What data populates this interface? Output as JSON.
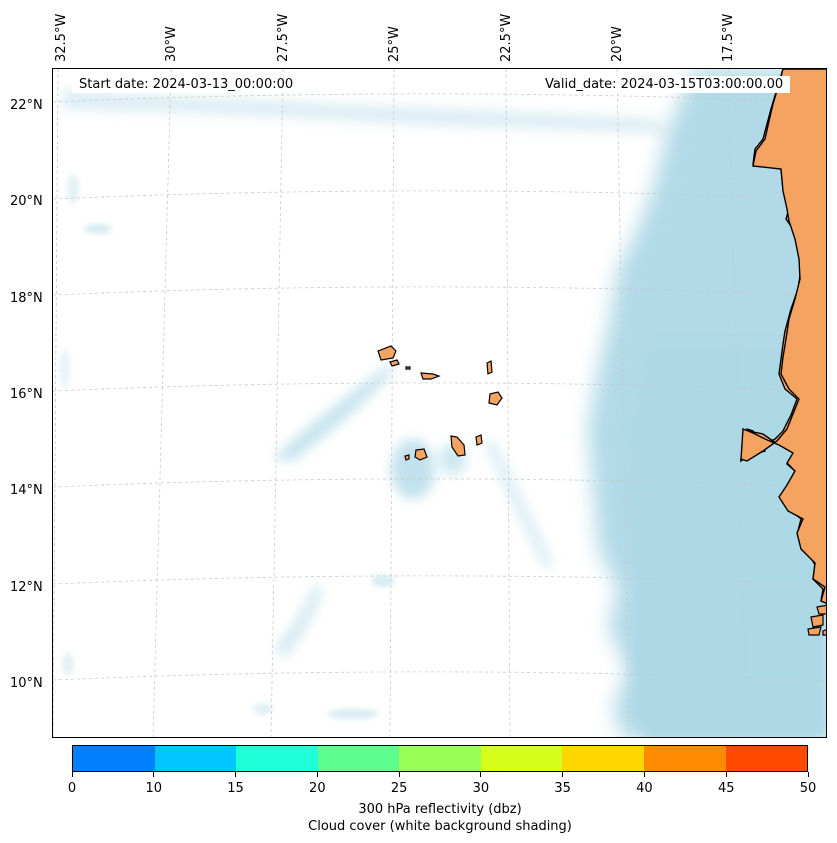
{
  "lon_labels": [
    "32.5°W",
    "30°W",
    "27.5°W",
    "25°W",
    "22.5°W",
    "20°W",
    "17.5°W"
  ],
  "lat_labels": [
    "22°N",
    "20°N",
    "18°N",
    "16°N",
    "14°N",
    "12°N",
    "10°N"
  ],
  "start_date": "Start date: 2024-03-13_00:00:00",
  "valid_date": "Valid_date: 2024-03-15T03:00:00.00",
  "colorbar": {
    "colors": [
      "#0080ff",
      "#00c5ff",
      "#20ffd8",
      "#5cff8e",
      "#98ff55",
      "#d5ff1a",
      "#ffd700",
      "#ff8c00",
      "#ff4a00"
    ],
    "ticks": [
      "0",
      "10",
      "15",
      "20",
      "25",
      "30",
      "35",
      "40",
      "45",
      "50"
    ],
    "label_line1": "300 hPa reflectivity (dbz)",
    "label_line2": "Cloud cover (white background shading)"
  },
  "colors": {
    "land": "#f4a460",
    "cloud": "#add8e6",
    "coast": "#000000",
    "grid": "#c8c8c8"
  }
}
